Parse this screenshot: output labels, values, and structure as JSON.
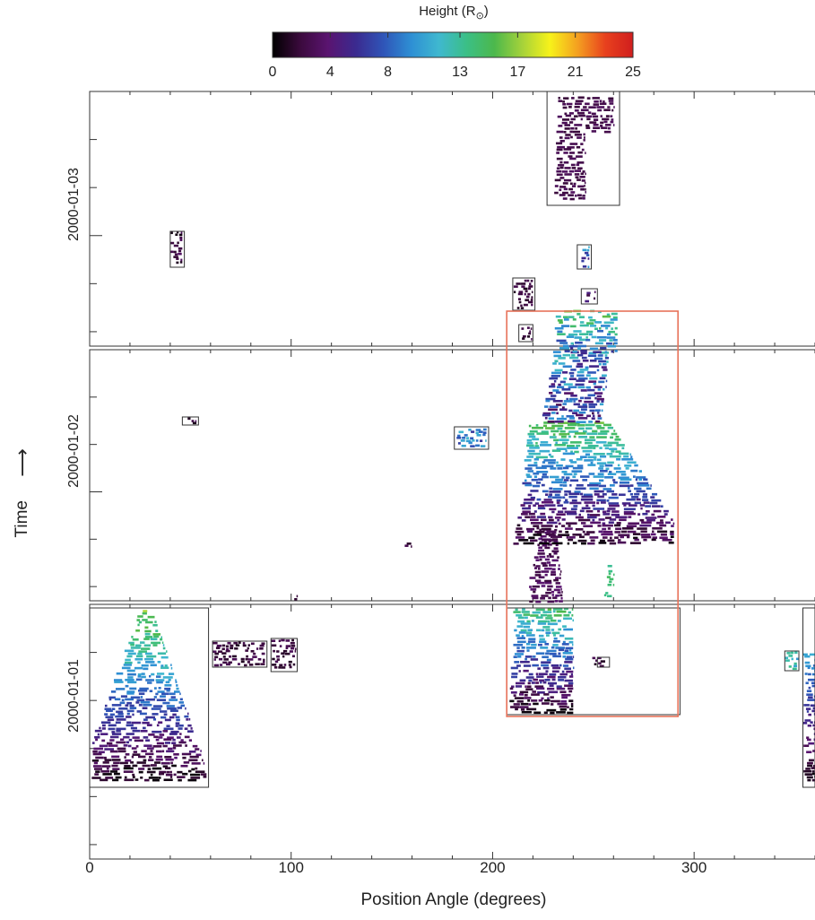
{
  "colorbar": {
    "title": "Height (R",
    "title_sub": "⊙",
    "title_close": ")",
    "ticks": [
      "0",
      "4",
      "8",
      "13",
      "17",
      "21",
      "25"
    ],
    "range": [
      0,
      25
    ],
    "colormap": [
      "#000000",
      "#3b0a3d",
      "#5a1470",
      "#3b2a8f",
      "#2f55b8",
      "#2e8fd4",
      "#3fb8cf",
      "#3bbf86",
      "#4cb84c",
      "#a5d23a",
      "#f7f21a",
      "#f4a020",
      "#e8411e",
      "#d01e1e"
    ]
  },
  "axes": {
    "xlabel": "Position Angle (degrees)",
    "ylabel": "Time",
    "ylabel_arrow": "⟶",
    "xlim": [
      0,
      360
    ],
    "xticks": [
      "0",
      "100",
      "200",
      "300"
    ],
    "panel_labels": [
      "2000-01-03",
      "2000-01-02",
      "2000-01-01"
    ]
  },
  "colors": {
    "detection_box": "#333333",
    "highlight_box": "#e8735a"
  },
  "chart_data": {
    "type": "heatmap",
    "title": "",
    "xlabel": "Position Angle (degrees)",
    "ylabel": "Time",
    "xlim": [
      0,
      360
    ],
    "color_scale_label": "Height (R⊙)",
    "color_range": [
      0,
      25
    ],
    "panels": [
      "2000-01-03",
      "2000-01-02",
      "2000-01-01"
    ]
  }
}
